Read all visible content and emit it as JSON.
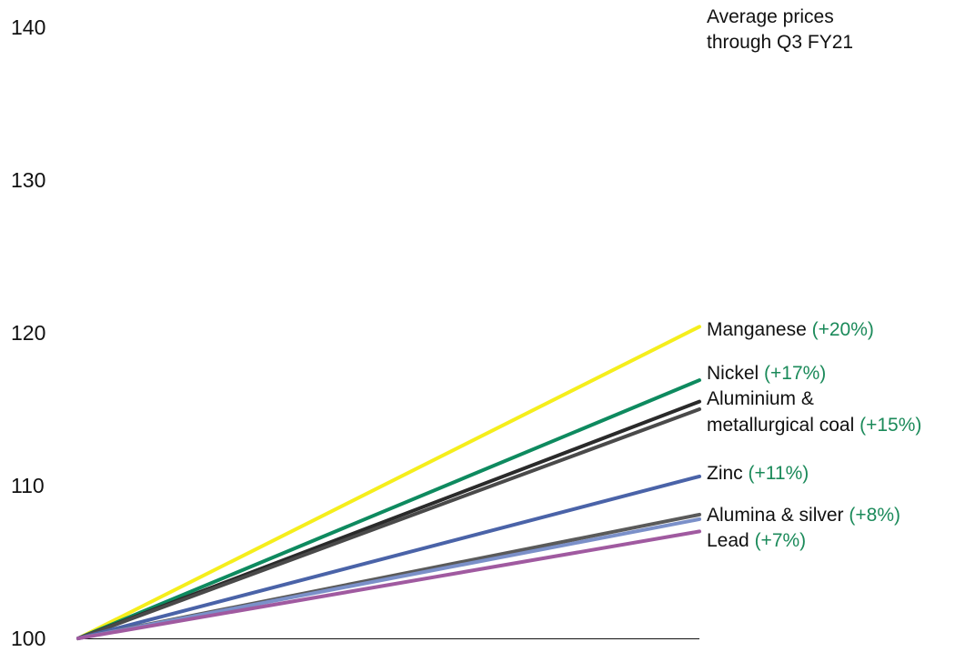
{
  "chart_data": {
    "type": "line",
    "title_lines": [
      "Average prices",
      "through Q3 FY21"
    ],
    "xlabel": "",
    "ylabel": "",
    "ylim": [
      100,
      140
    ],
    "yticks": [
      100,
      110,
      120,
      130,
      140
    ],
    "grid": false,
    "x": [
      0,
      1
    ],
    "series": [
      {
        "id": "manganese",
        "values": [
          100,
          120.4
        ],
        "color": "#f5ee1c"
      },
      {
        "id": "nickel",
        "values": [
          100,
          116.9
        ],
        "color": "#0e8a5f"
      },
      {
        "id": "aluminium",
        "values": [
          100,
          115.5
        ],
        "color": "#2a2a2a"
      },
      {
        "id": "metallurgical-coal",
        "values": [
          100,
          115.0
        ],
        "color": "#4a4a4a"
      },
      {
        "id": "zinc",
        "values": [
          100,
          110.6
        ],
        "color": "#4a63a8"
      },
      {
        "id": "alumina",
        "values": [
          100,
          108.1
        ],
        "color": "#5a5a5a"
      },
      {
        "id": "silver",
        "values": [
          100,
          107.8
        ],
        "color": "#7b90c9"
      },
      {
        "id": "lead",
        "values": [
          100,
          107.0
        ],
        "color": "#a05aa0"
      }
    ],
    "labels": [
      {
        "id": "manganese",
        "lines": [
          {
            "name": "Manganese ",
            "pct": "(+20%)"
          }
        ]
      },
      {
        "id": "nickel",
        "lines": [
          {
            "name": "Nickel ",
            "pct": "(+17%)"
          }
        ]
      },
      {
        "id": "aluminium-coal",
        "lines": [
          {
            "name": "Aluminium &",
            "pct": ""
          },
          {
            "name": "metallurgical coal ",
            "pct": "(+15%)"
          }
        ]
      },
      {
        "id": "zinc",
        "lines": [
          {
            "name": "Zinc ",
            "pct": "(+11%)"
          }
        ]
      },
      {
        "id": "alumina-silver",
        "lines": [
          {
            "name": "Alumina & silver ",
            "pct": "(+8%)"
          }
        ]
      },
      {
        "id": "lead",
        "lines": [
          {
            "name": "Lead ",
            "pct": "(+7%)"
          }
        ]
      }
    ]
  }
}
